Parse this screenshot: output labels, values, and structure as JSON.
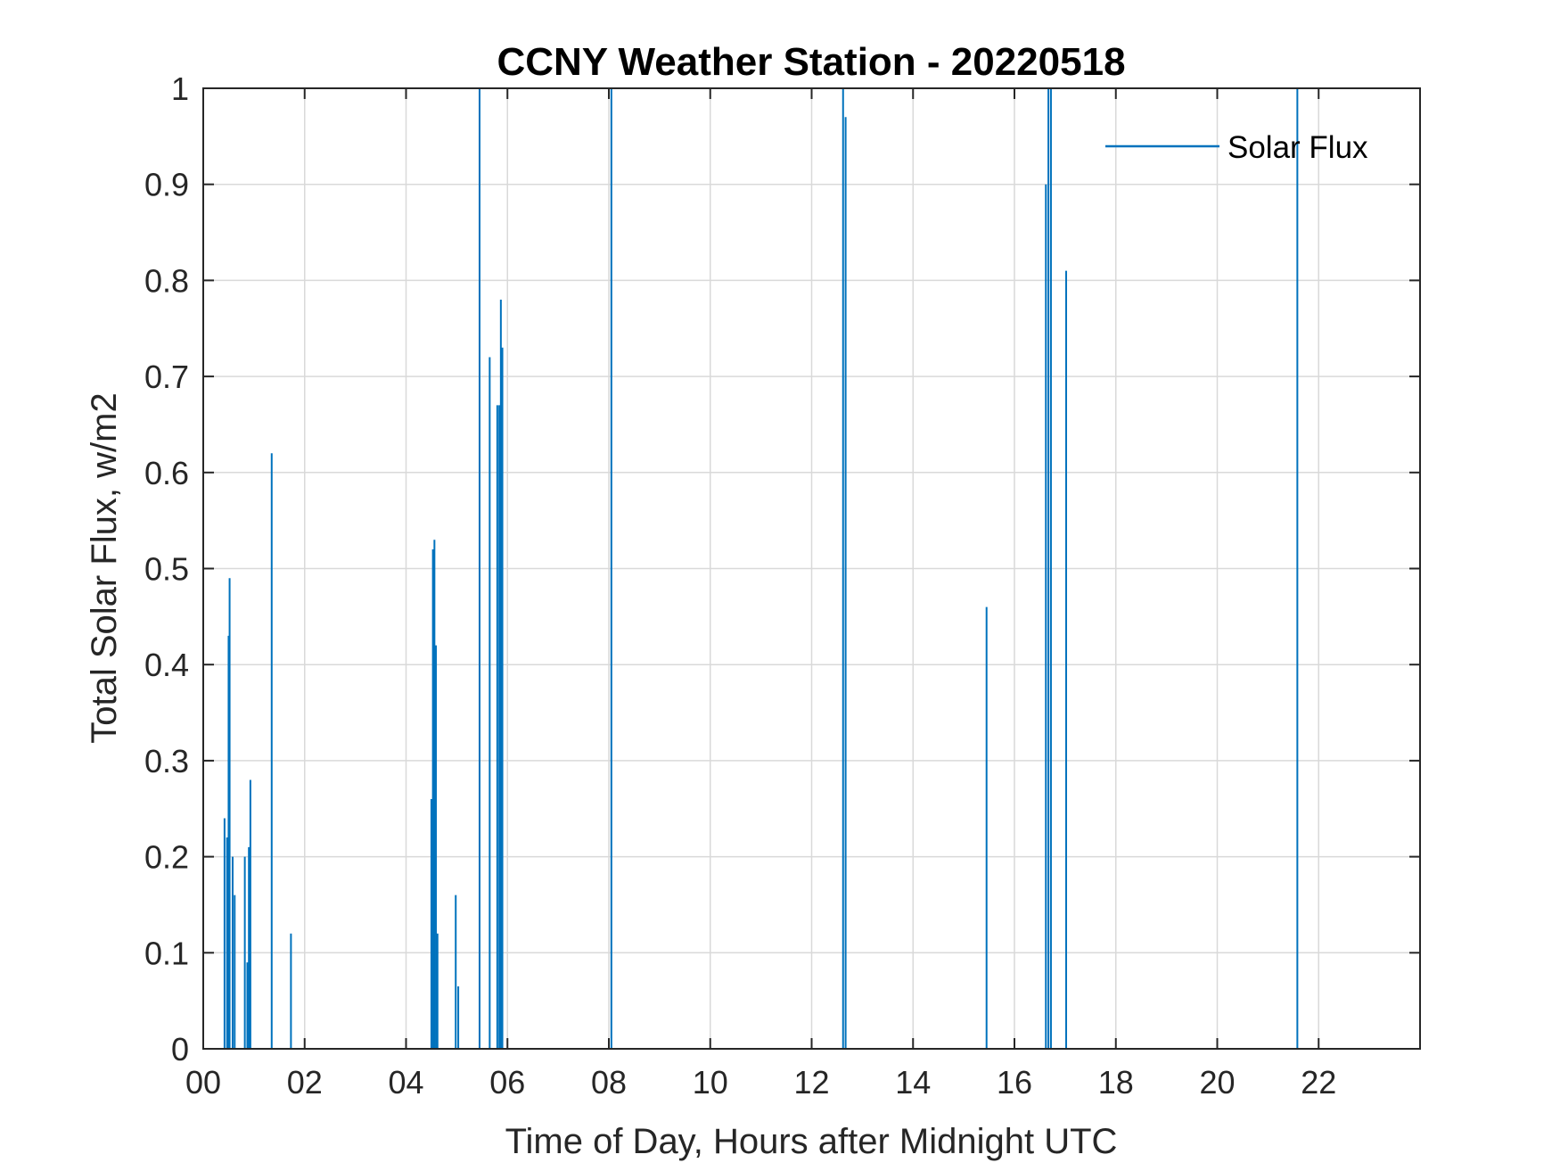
{
  "chart_data": {
    "type": "line",
    "title": "CCNY Weather Station - 20220518",
    "xlabel": "Time of Day, Hours after Midnight UTC",
    "ylabel": "Total Solar Flux, w/m2",
    "xlim": [
      0,
      24
    ],
    "ylim": [
      0,
      1
    ],
    "grid": true,
    "legend": {
      "position": "top-right",
      "entries": [
        "Solar Flux"
      ]
    },
    "x_ticks": [
      0,
      2,
      4,
      6,
      8,
      10,
      12,
      14,
      16,
      18,
      20,
      22
    ],
    "x_tick_labels": [
      "00",
      "02",
      "04",
      "06",
      "08",
      "10",
      "12",
      "14",
      "16",
      "18",
      "20",
      "22"
    ],
    "y_ticks": [
      0,
      0.1,
      0.2,
      0.3,
      0.4,
      0.5,
      0.6,
      0.7,
      0.8,
      0.9,
      1
    ],
    "y_tick_labels": [
      "0",
      "0.1",
      "0.2",
      "0.3",
      "0.4",
      "0.5",
      "0.6",
      "0.7",
      "0.8",
      "0.9",
      "1"
    ],
    "series": [
      {
        "name": "Solar Flux",
        "color": "#0072BD",
        "spikes": [
          [
            0.42,
            0.24
          ],
          [
            0.47,
            0.22
          ],
          [
            0.5,
            0.43
          ],
          [
            0.52,
            0.49
          ],
          [
            0.58,
            0.2
          ],
          [
            0.62,
            0.16
          ],
          [
            0.82,
            0.2
          ],
          [
            0.87,
            0.09
          ],
          [
            0.9,
            0.21
          ],
          [
            0.93,
            0.28
          ],
          [
            1.35,
            0.62
          ],
          [
            1.73,
            0.12
          ],
          [
            4.5,
            0.26
          ],
          [
            4.53,
            0.52
          ],
          [
            4.56,
            0.53
          ],
          [
            4.59,
            0.42
          ],
          [
            4.62,
            0.12
          ],
          [
            4.98,
            0.16
          ],
          [
            5.03,
            0.065
          ],
          [
            5.45,
            1.0
          ],
          [
            5.65,
            0.72
          ],
          [
            5.8,
            0.67
          ],
          [
            5.84,
            0.67
          ],
          [
            5.87,
            0.78
          ],
          [
            5.9,
            0.73
          ],
          [
            8.05,
            1.0
          ],
          [
            12.62,
            1.0
          ],
          [
            12.67,
            0.97
          ],
          [
            15.45,
            0.46
          ],
          [
            16.62,
            0.9
          ],
          [
            16.67,
            1.0
          ],
          [
            16.72,
            1.0
          ],
          [
            17.02,
            0.81
          ],
          [
            21.58,
            1.0
          ]
        ]
      }
    ]
  }
}
